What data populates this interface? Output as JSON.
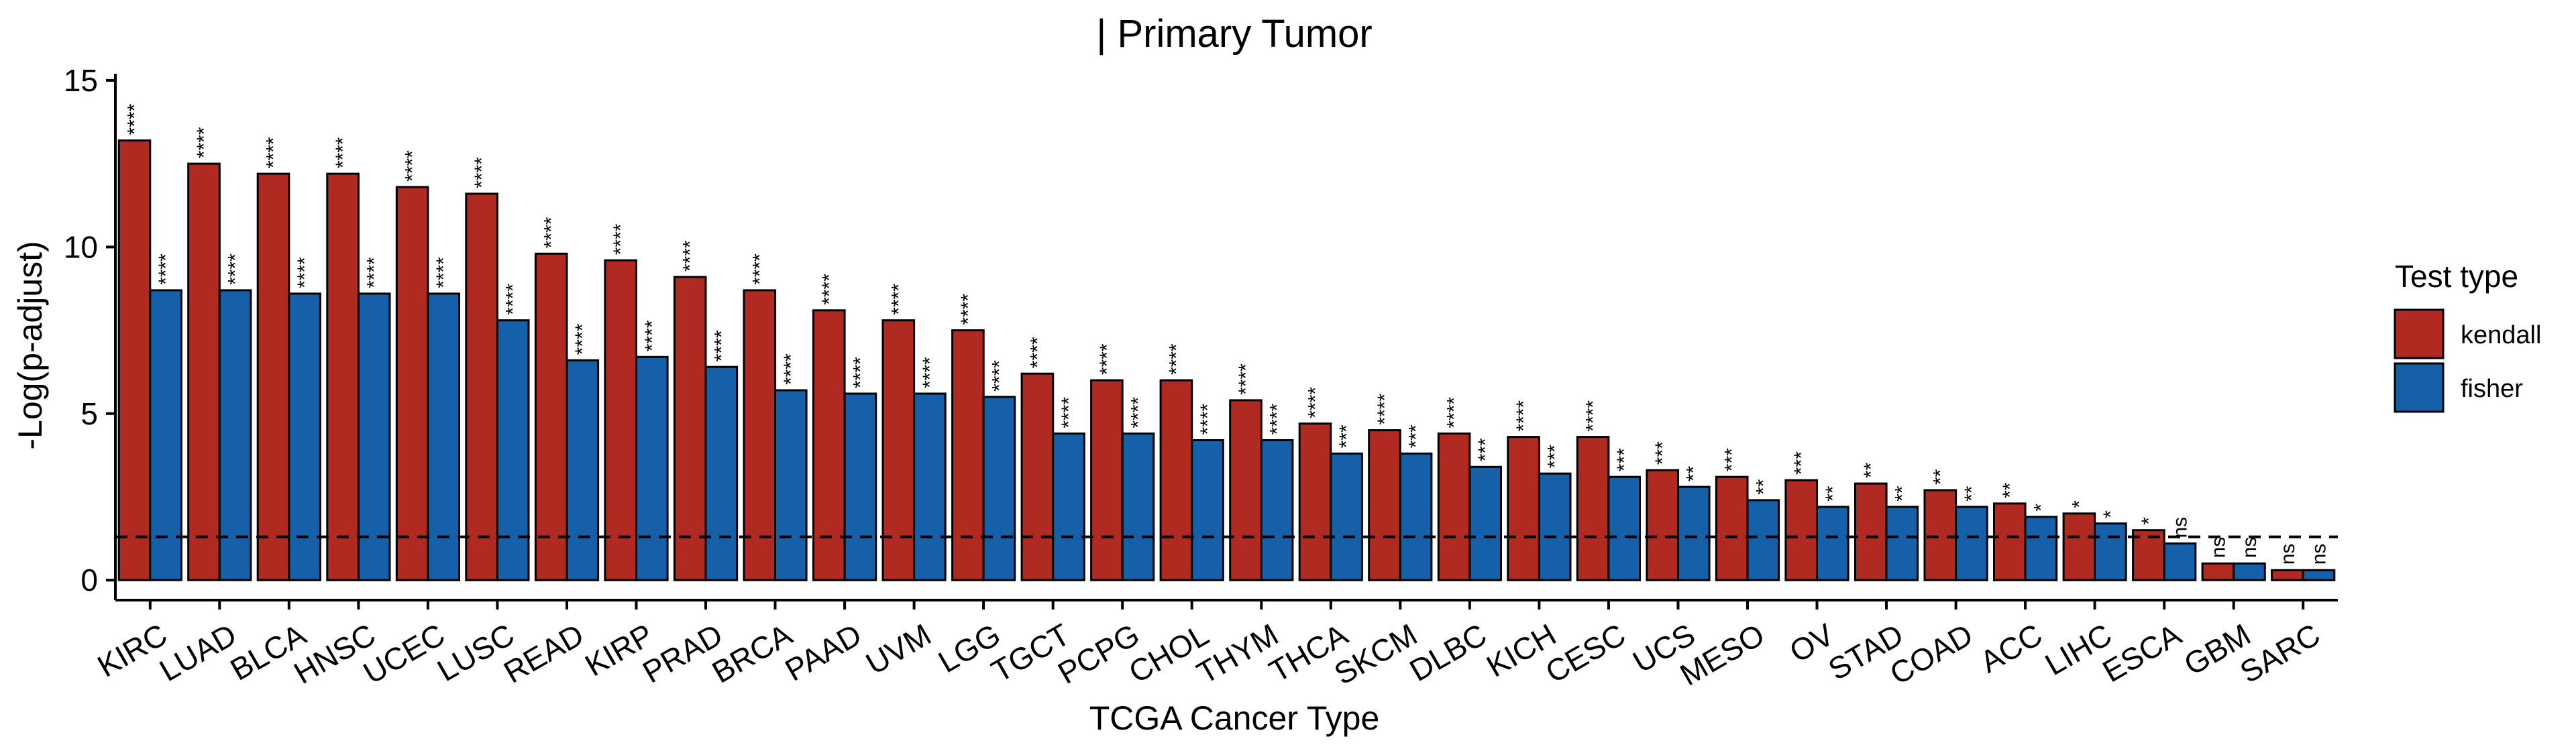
{
  "chart_data": {
    "type": "bar",
    "title": "| Primary Tumor",
    "xlabel": "TCGA Cancer Type",
    "ylabel": "-Log(p-adjust)",
    "ylim": [
      -0.6,
      15.2
    ],
    "yticks": [
      0,
      5,
      10,
      15
    ],
    "threshold_line": 1.3,
    "grid": false,
    "legend_title": "Test type",
    "legend_position": "right",
    "categories": [
      "KIRC",
      "LUAD",
      "BLCA",
      "HNSC",
      "UCEC",
      "LUSC",
      "READ",
      "KIRP",
      "PRAD",
      "BRCA",
      "PAAD",
      "UVM",
      "LGG",
      "TGCT",
      "PCPG",
      "CHOL",
      "THYM",
      "THCA",
      "SKCM",
      "DLBC",
      "KICH",
      "CESC",
      "UCS",
      "MESO",
      "OV",
      "STAD",
      "COAD",
      "ACC",
      "LIHC",
      "ESCA",
      "GBM",
      "SARC"
    ],
    "series": [
      {
        "name": "kendall",
        "color": "#B02A22",
        "values": [
          13.2,
          12.5,
          12.2,
          12.2,
          11.8,
          11.6,
          9.8,
          9.6,
          9.1,
          8.7,
          8.1,
          7.8,
          7.5,
          6.2,
          6.0,
          6.0,
          5.4,
          4.7,
          4.5,
          4.4,
          4.3,
          4.3,
          3.3,
          3.1,
          3.0,
          2.9,
          2.7,
          2.3,
          2.0,
          1.5,
          0.5,
          0.3
        ],
        "labels": [
          "****",
          "****",
          "****",
          "****",
          "****",
          "****",
          "****",
          "****",
          "****",
          "****",
          "****",
          "****",
          "****",
          "****",
          "****",
          "****",
          "****",
          "****",
          "****",
          "****",
          "****",
          "****",
          "***",
          "***",
          "***",
          "**",
          "**",
          "**",
          "*",
          "*",
          "ns",
          "ns"
        ]
      },
      {
        "name": "fisher",
        "color": "#1660AA",
        "values": [
          8.7,
          8.7,
          8.6,
          8.6,
          8.6,
          7.8,
          6.6,
          6.7,
          6.4,
          5.7,
          5.6,
          5.6,
          5.5,
          4.4,
          4.4,
          4.2,
          4.2,
          3.8,
          3.8,
          3.4,
          3.2,
          3.1,
          2.8,
          2.4,
          2.2,
          2.2,
          2.2,
          1.9,
          1.7,
          1.1,
          0.5,
          0.3
        ],
        "labels": [
          "****",
          "****",
          "****",
          "****",
          "****",
          "****",
          "****",
          "****",
          "****",
          "****",
          "****",
          "****",
          "****",
          "****",
          "****",
          "****",
          "****",
          "***",
          "***",
          "***",
          "***",
          "***",
          "**",
          "**",
          "**",
          "**",
          "**",
          "*",
          "*",
          "ns",
          "ns",
          "ns"
        ]
      }
    ]
  }
}
